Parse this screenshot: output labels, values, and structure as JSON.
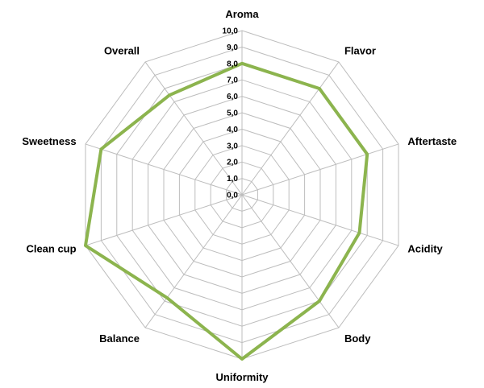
{
  "chart_data": {
    "type": "radar",
    "title": "",
    "categories": [
      "Aroma",
      "Flavor",
      "Aftertaste",
      "Acidity",
      "Body",
      "Uniformity",
      "Balance",
      "Clean cup",
      "Sweetness",
      "Overall"
    ],
    "series": [
      {
        "values": [
          8.0,
          8.0,
          8.0,
          7.5,
          8.0,
          10.0,
          7.75,
          10.0,
          9.0,
          7.5
        ],
        "color": "#8cb44e"
      }
    ],
    "rlim": [
      0,
      10
    ],
    "ticks": [
      "0,0",
      "1,0",
      "2,0",
      "3,0",
      "4,0",
      "5,0",
      "6,0",
      "7,0",
      "8,0",
      "9,0",
      "10,0"
    ],
    "grid": true,
    "legend": "none"
  }
}
